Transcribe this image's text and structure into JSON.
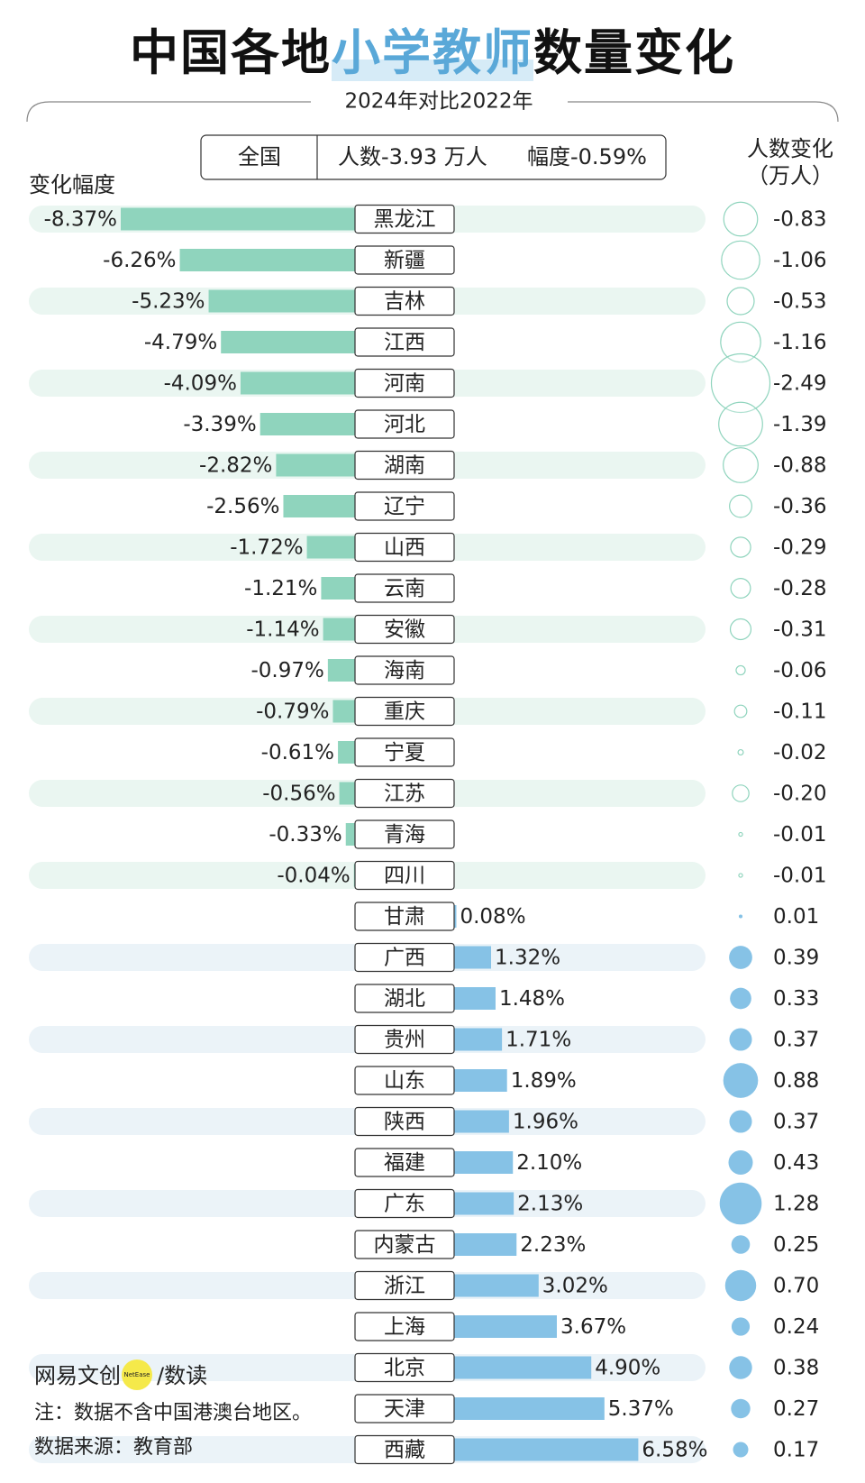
{
  "header": {
    "title_start": "中国各地",
    "title_highlight": "小学教师",
    "title_end": "数量变化",
    "subtitle": "2024年对比2022年"
  },
  "national": {
    "label": "全国",
    "count_text": "人数-3.93 万人",
    "pct_text": "幅度-0.59%"
  },
  "chart_data": {
    "type": "diverging-bar",
    "bar_label": "变化幅度",
    "bubble_label_line1": "人数变化",
    "bubble_label_line2": "（万人）",
    "negative_color": "#8fd4bd",
    "positive_color": "#86c2e6",
    "categories": [
      "黑龙江",
      "新疆",
      "吉林",
      "江西",
      "河南",
      "河北",
      "湖南",
      "辽宁",
      "山西",
      "云南",
      "安徽",
      "海南",
      "重庆",
      "宁夏",
      "江苏",
      "青海",
      "四川",
      "甘肃",
      "广西",
      "湖北",
      "贵州",
      "山东",
      "陕西",
      "福建",
      "广东",
      "内蒙古",
      "浙江",
      "上海",
      "北京",
      "天津",
      "西藏"
    ],
    "values": [
      -8.37,
      -6.26,
      -5.23,
      -4.79,
      -4.09,
      -3.39,
      -2.82,
      -2.56,
      -1.72,
      -1.21,
      -1.14,
      -0.97,
      -0.79,
      -0.61,
      -0.56,
      -0.33,
      -0.04,
      0.08,
      1.32,
      1.48,
      1.71,
      1.89,
      1.96,
      2.1,
      2.13,
      2.23,
      3.02,
      3.67,
      4.9,
      5.37,
      6.58
    ],
    "value_labels": [
      "-8.37%",
      "-6.26%",
      "-5.23%",
      "-4.79%",
      "-4.09%",
      "-3.39%",
      "-2.82%",
      "-2.56%",
      "-1.72%",
      "-1.21%",
      "-1.14%",
      "-0.97%",
      "-0.79%",
      "-0.61%",
      "-0.56%",
      "-0.33%",
      "-0.04%",
      "0.08%",
      "1.32%",
      "1.48%",
      "1.71%",
      "1.89%",
      "1.96%",
      "2.10%",
      "2.13%",
      "2.23%",
      "3.02%",
      "3.67%",
      "4.90%",
      "5.37%",
      "6.58%"
    ],
    "counts": [
      -0.83,
      -1.06,
      -0.53,
      -1.16,
      -2.49,
      -1.39,
      -0.88,
      -0.36,
      -0.29,
      -0.28,
      -0.31,
      -0.06,
      -0.11,
      -0.02,
      -0.2,
      -0.01,
      -0.01,
      0.01,
      0.39,
      0.33,
      0.37,
      0.88,
      0.37,
      0.43,
      1.28,
      0.25,
      0.7,
      0.24,
      0.38,
      0.27,
      0.17
    ],
    "count_labels": [
      "-0.83",
      "-1.06",
      "-0.53",
      "-1.16",
      "-2.49",
      "-1.39",
      "-0.88",
      "-0.36",
      "-0.29",
      "-0.28",
      "-0.31",
      "-0.06",
      "-0.11",
      "-0.02",
      "-0.20",
      "-0.01",
      "-0.01",
      "0.01",
      "0.39",
      "0.33",
      "0.37",
      "0.88",
      "0.37",
      "0.43",
      "1.28",
      "0.25",
      "0.70",
      "0.24",
      "0.38",
      "0.27",
      "0.17"
    ]
  },
  "footer": {
    "brand": "网易文创",
    "brand_badge": "NetEase",
    "brand_suffix": "/数读",
    "note": "注：数据不含中国港澳台地区。",
    "source": "数据来源：教育部"
  }
}
